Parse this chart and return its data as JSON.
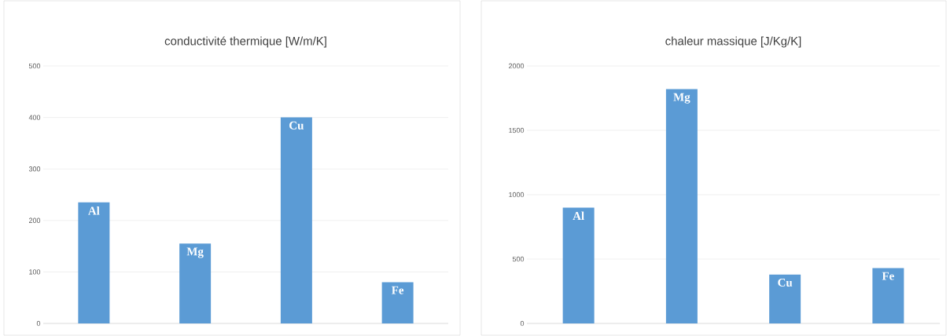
{
  "chart_data": [
    {
      "type": "bar",
      "title": "conductivité thermique [W/m/K]",
      "categories": [
        "Al",
        "Mg",
        "Cu",
        "Fe"
      ],
      "values": [
        235,
        155,
        400,
        80
      ],
      "color": "#5b9bd5",
      "ylim": [
        0,
        500
      ],
      "yticks": [
        0,
        100,
        200,
        300,
        400,
        500
      ],
      "grid": "y"
    },
    {
      "type": "bar",
      "title": "chaleur massique [J/Kg/K]",
      "categories": [
        "Al",
        "Mg",
        "Cu",
        "Fe"
      ],
      "values": [
        900,
        1820,
        380,
        430
      ],
      "color": "#5b9bd5",
      "ylim": [
        0,
        2000
      ],
      "yticks": [
        0,
        500,
        1000,
        1500,
        2000
      ],
      "grid": "y"
    }
  ]
}
